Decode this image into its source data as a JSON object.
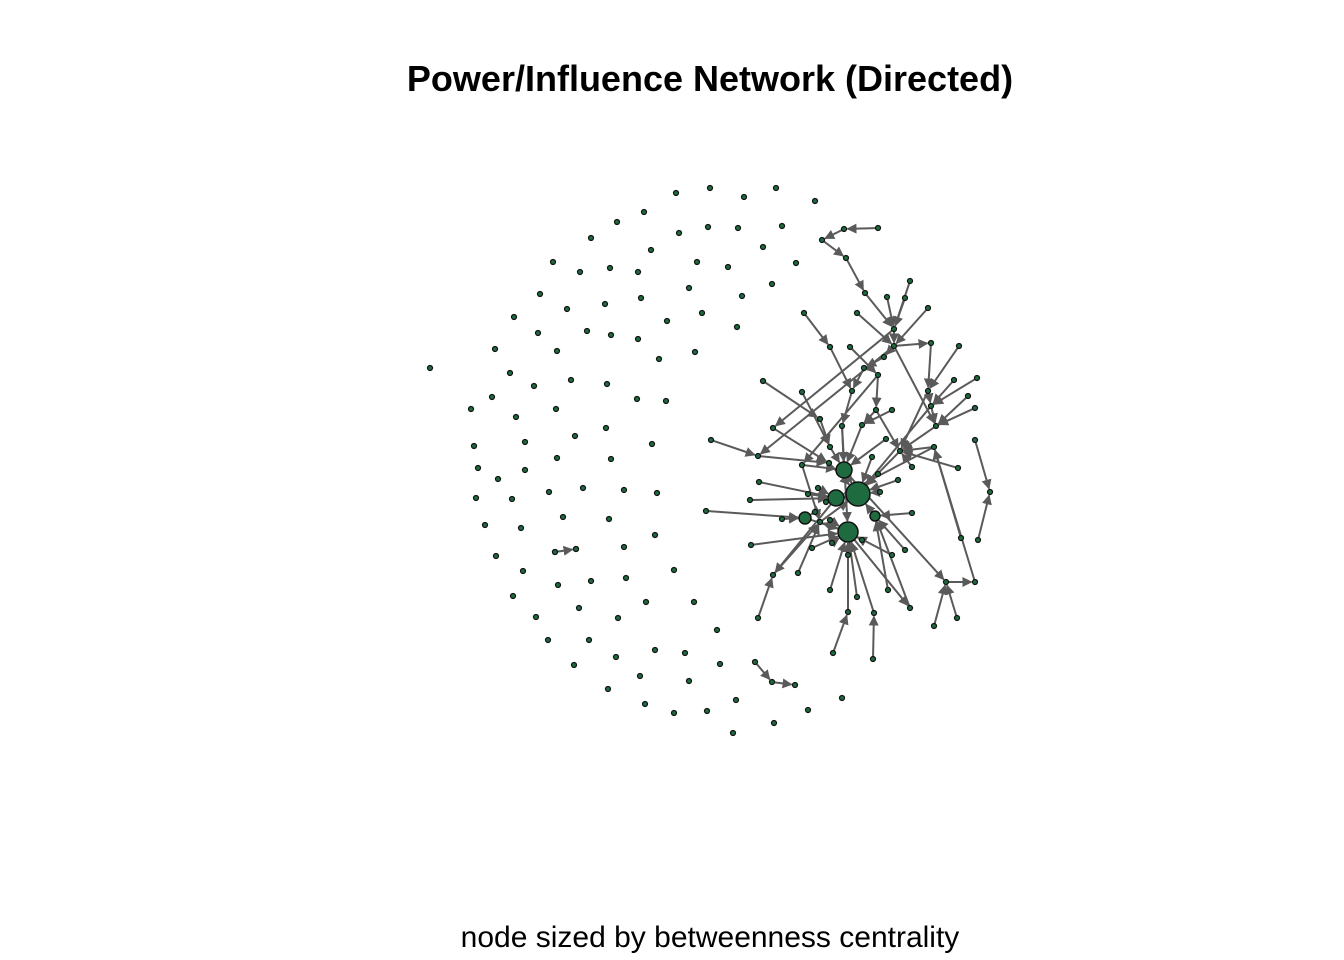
{
  "title": "Power/Influence Network (Directed)",
  "subtitle": "node sized by betweenness centrality",
  "style": {
    "node_fill": "#1e6b3f",
    "node_stroke": "#111111",
    "edge_color": "#5a5a5a"
  },
  "chart_data": {
    "type": "network",
    "directed": true,
    "size_metric": "betweenness centrality"
  }
}
